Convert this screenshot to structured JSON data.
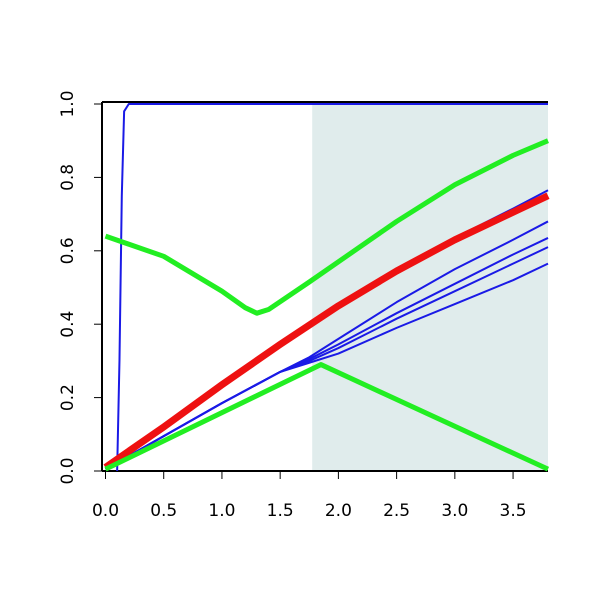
{
  "chart_data": {
    "type": "line",
    "xlim": [
      -0.03,
      3.8
    ],
    "ylim": [
      0,
      1
    ],
    "xticks": [
      {
        "value": 0,
        "label": "0.0"
      },
      0.5,
      {
        "value": 1,
        "label": "1.0"
      },
      1.5,
      {
        "value": 2,
        "label": "2.0"
      },
      2.5,
      {
        "value": 3,
        "label": "3.0"
      },
      3.5
    ],
    "yticks": [
      {
        "value": 0,
        "label": "0.0"
      },
      0.2,
      0.4,
      0.6,
      0.8,
      {
        "value": 1,
        "label": "1.0"
      }
    ],
    "span": {
      "x": [
        1.775,
        3.8
      ],
      "y": [
        0,
        1
      ],
      "color": "#e0ecec"
    },
    "series": [
      {
        "color": "#1a1ae6",
        "width": 2,
        "x": [
          0.1,
          0.12,
          0.14,
          0.16,
          0.2,
          3.8
        ],
        "values": [
          0,
          0.3,
          0.75,
          0.98,
          1,
          1
        ]
      },
      {
        "color": "#1a1ae6",
        "width": 2,
        "x": [
          0,
          0.5,
          1,
          1.5,
          2,
          2.5,
          3,
          3.5,
          3.8
        ],
        "values": [
          0.01,
          0.12,
          0.235,
          0.345,
          0.45,
          0.55,
          0.635,
          0.715,
          0.765
        ]
      },
      {
        "color": "#1a1ae6",
        "width": 2,
        "x": [
          0,
          0.5,
          1,
          1.5,
          1.75,
          2,
          2.5,
          3,
          3.5,
          3.8
        ],
        "values": [
          0.005,
          0.095,
          0.185,
          0.27,
          0.31,
          0.36,
          0.46,
          0.55,
          0.63,
          0.68
        ]
      },
      {
        "color": "#1a1ae6",
        "width": 2,
        "x": [
          0,
          0.5,
          1,
          1.5,
          1.75,
          2,
          2.5,
          3,
          3.5,
          3.8
        ],
        "values": [
          0.005,
          0.095,
          0.185,
          0.27,
          0.305,
          0.345,
          0.43,
          0.51,
          0.59,
          0.635
        ]
      },
      {
        "color": "#1a1ae6",
        "width": 2,
        "x": [
          0,
          0.5,
          1,
          1.5,
          1.75,
          2,
          2.5,
          3,
          3.5,
          3.8
        ],
        "values": [
          0.005,
          0.095,
          0.185,
          0.27,
          0.3,
          0.335,
          0.415,
          0.49,
          0.565,
          0.61
        ]
      },
      {
        "color": "#1a1ae6",
        "width": 2,
        "x": [
          0,
          0.5,
          1,
          1.5,
          1.75,
          2,
          2.5,
          3,
          3.5,
          3.8
        ],
        "values": [
          0.005,
          0.095,
          0.185,
          0.27,
          0.295,
          0.32,
          0.39,
          0.455,
          0.52,
          0.565
        ]
      },
      {
        "color": "#ee1111",
        "width": 7,
        "x": [
          0,
          0.5,
          1,
          1.5,
          2,
          2.5,
          3,
          3.5,
          3.8
        ],
        "values": [
          0.01,
          0.12,
          0.235,
          0.345,
          0.45,
          0.545,
          0.63,
          0.705,
          0.75
        ]
      },
      {
        "color": "#22ee22",
        "width": 5,
        "x": [
          0,
          0.5,
          1,
          1.2,
          1.3,
          1.4,
          1.75,
          2,
          2.5,
          3,
          3.5,
          3.8
        ],
        "values": [
          0.64,
          0.585,
          0.49,
          0.445,
          0.43,
          0.44,
          0.515,
          0.57,
          0.68,
          0.78,
          0.86,
          0.9
        ]
      },
      {
        "color": "#22ee22",
        "width": 5,
        "x": [
          0,
          1.85,
          3.8
        ],
        "values": [
          0.005,
          0.29,
          0.005
        ]
      }
    ]
  }
}
